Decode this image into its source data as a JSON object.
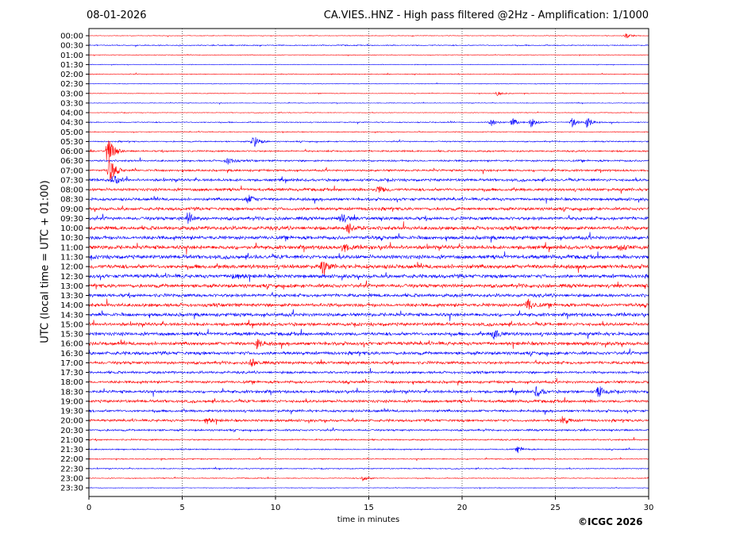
{
  "chart_data": {
    "type": "line",
    "title": "CA.VIES..HNZ - High pass filtered @2Hz - Amplification: 1/1000",
    "date": "08-01-2026",
    "xlabel": "time in minutes",
    "ylabel": "UTC (local time = UTC + 01:00)",
    "xlim": [
      0,
      30
    ],
    "xticks": [
      0,
      5,
      10,
      15,
      20,
      25,
      30
    ],
    "grid": "vertical dotted at 5 min",
    "series_colors": [
      "#ff0000",
      "#0000ff"
    ],
    "rows": [
      "00:00",
      "00:30",
      "01:00",
      "01:30",
      "02:00",
      "02:30",
      "03:00",
      "03:30",
      "04:00",
      "04:30",
      "05:00",
      "05:30",
      "06:00",
      "06:30",
      "07:00",
      "07:30",
      "08:00",
      "08:30",
      "09:00",
      "09:30",
      "10:00",
      "10:30",
      "11:00",
      "11:30",
      "12:00",
      "12:30",
      "13:00",
      "13:30",
      "14:00",
      "14:30",
      "15:00",
      "15:30",
      "16:00",
      "16:30",
      "17:00",
      "17:30",
      "18:00",
      "18:30",
      "19:00",
      "19:30",
      "20:00",
      "20:30",
      "21:00",
      "21:30",
      "22:00",
      "22:30",
      "23:00",
      "23:30"
    ],
    "noise_level": [
      0.3,
      0.5,
      0.3,
      0.3,
      0.4,
      0.3,
      0.3,
      0.3,
      0.3,
      0.5,
      0.4,
      0.6,
      0.8,
      0.9,
      1.0,
      1.3,
      1.4,
      1.4,
      1.5,
      1.6,
      1.8,
      1.8,
      1.9,
      1.9,
      2.0,
      1.8,
      1.8,
      1.6,
      1.7,
      1.7,
      1.6,
      1.7,
      1.7,
      1.6,
      1.4,
      1.2,
      1.3,
      1.4,
      1.4,
      1.2,
      1.2,
      0.9,
      0.7,
      0.6,
      0.5,
      0.5,
      0.4,
      0.3
    ],
    "events": [
      {
        "row": 0,
        "minute": 28.8,
        "amplitude": 3
      },
      {
        "row": 6,
        "minute": 21.9,
        "amplitude": 3
      },
      {
        "row": 9,
        "minute": 21.5,
        "amplitude": 6
      },
      {
        "row": 9,
        "minute": 22.7,
        "amplitude": 5
      },
      {
        "row": 9,
        "minute": 23.7,
        "amplitude": 6
      },
      {
        "row": 9,
        "minute": 25.9,
        "amplitude": 6
      },
      {
        "row": 9,
        "minute": 26.7,
        "amplitude": 7
      },
      {
        "row": 11,
        "minute": 8.8,
        "amplitude": 9
      },
      {
        "row": 12,
        "minute": 1.0,
        "amplitude": 20
      },
      {
        "row": 13,
        "minute": 7.4,
        "amplitude": 6
      },
      {
        "row": 14,
        "minute": 1.1,
        "amplitude": 18
      },
      {
        "row": 15,
        "minute": 1.3,
        "amplitude": 8
      },
      {
        "row": 16,
        "minute": 15.5,
        "amplitude": 5
      },
      {
        "row": 17,
        "minute": 8.5,
        "amplitude": 6
      },
      {
        "row": 19,
        "minute": 5.3,
        "amplitude": 9
      },
      {
        "row": 19,
        "minute": 13.5,
        "amplitude": 7
      },
      {
        "row": 20,
        "minute": 13.9,
        "amplitude": 7
      },
      {
        "row": 22,
        "minute": 13.6,
        "amplitude": 6
      },
      {
        "row": 22,
        "minute": 28.4,
        "amplitude": 6
      },
      {
        "row": 24,
        "minute": 12.5,
        "amplitude": 8
      },
      {
        "row": 25,
        "minute": 7.8,
        "amplitude": 6
      },
      {
        "row": 28,
        "minute": 23.5,
        "amplitude": 9
      },
      {
        "row": 31,
        "minute": 21.7,
        "amplitude": 7
      },
      {
        "row": 32,
        "minute": 9.0,
        "amplitude": 6
      },
      {
        "row": 34,
        "minute": 8.7,
        "amplitude": 5
      },
      {
        "row": 37,
        "minute": 24.0,
        "amplitude": 7
      },
      {
        "row": 37,
        "minute": 27.3,
        "amplitude": 8
      },
      {
        "row": 40,
        "minute": 6.3,
        "amplitude": 5
      },
      {
        "row": 40,
        "minute": 25.4,
        "amplitude": 6
      },
      {
        "row": 43,
        "minute": 23.0,
        "amplitude": 4
      },
      {
        "row": 46,
        "minute": 14.7,
        "amplitude": 4
      }
    ]
  },
  "copyright": "©ICGC 2026"
}
